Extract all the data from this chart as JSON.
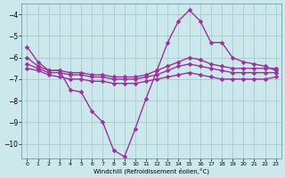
{
  "bg_color": "#cce8ec",
  "grid_color": "#aacccc",
  "line_color": "#993399",
  "marker": "D",
  "markersize": 2.5,
  "linewidth": 1.0,
  "xlabel": "Windchill (Refroidissement éolien,°C)",
  "xlim": [
    -0.5,
    23.5
  ],
  "ylim": [
    -10.7,
    -3.5
  ],
  "yticks": [
    -10,
    -9,
    -8,
    -7,
    -6,
    -5,
    -4
  ],
  "xticks": [
    0,
    1,
    2,
    3,
    4,
    5,
    6,
    7,
    8,
    9,
    10,
    11,
    12,
    13,
    14,
    15,
    16,
    17,
    18,
    19,
    20,
    21,
    22,
    23
  ],
  "series1_x": [
    0,
    1,
    2,
    3,
    4,
    5,
    6,
    7,
    8,
    9,
    10,
    11,
    12,
    13,
    14,
    15,
    16,
    17,
    18,
    19,
    20,
    21,
    22,
    23
  ],
  "series1_y": [
    -5.5,
    -6.2,
    -6.6,
    -6.6,
    -7.5,
    -7.6,
    -8.5,
    -9.0,
    -10.3,
    -10.6,
    -9.3,
    -7.9,
    -6.6,
    -5.3,
    -4.3,
    -3.8,
    -4.3,
    -5.3,
    -5.3,
    -6.0,
    -6.2,
    -6.3,
    -6.4,
    -6.6
  ],
  "series2_x": [
    0,
    1,
    2,
    3,
    4,
    5,
    6,
    7,
    8,
    9,
    10,
    11,
    12,
    13,
    14,
    15,
    16,
    17,
    18,
    19,
    20,
    21,
    22,
    23
  ],
  "series2_y": [
    -6.0,
    -6.4,
    -6.6,
    -6.6,
    -6.7,
    -6.7,
    -6.8,
    -6.8,
    -6.9,
    -6.9,
    -6.9,
    -6.8,
    -6.6,
    -6.4,
    -6.2,
    -6.0,
    -6.1,
    -6.3,
    -6.4,
    -6.5,
    -6.5,
    -6.5,
    -6.5,
    -6.5
  ],
  "series3_x": [
    0,
    1,
    2,
    3,
    4,
    5,
    6,
    7,
    8,
    9,
    10,
    11,
    12,
    13,
    14,
    15,
    16,
    17,
    18,
    19,
    20,
    21,
    22,
    23
  ],
  "series3_y": [
    -6.3,
    -6.5,
    -6.7,
    -6.7,
    -6.8,
    -6.8,
    -6.9,
    -6.9,
    -7.0,
    -7.0,
    -7.0,
    -6.9,
    -6.8,
    -6.6,
    -6.4,
    -6.3,
    -6.4,
    -6.5,
    -6.6,
    -6.7,
    -6.7,
    -6.7,
    -6.7,
    -6.7
  ],
  "series4_x": [
    0,
    1,
    2,
    3,
    4,
    5,
    6,
    7,
    8,
    9,
    10,
    11,
    12,
    13,
    14,
    15,
    16,
    17,
    18,
    19,
    20,
    21,
    22,
    23
  ],
  "series4_y": [
    -6.5,
    -6.6,
    -6.8,
    -6.9,
    -7.0,
    -7.0,
    -7.1,
    -7.1,
    -7.2,
    -7.2,
    -7.2,
    -7.1,
    -7.0,
    -6.9,
    -6.8,
    -6.7,
    -6.8,
    -6.9,
    -7.0,
    -7.0,
    -7.0,
    -7.0,
    -7.0,
    -6.9
  ]
}
